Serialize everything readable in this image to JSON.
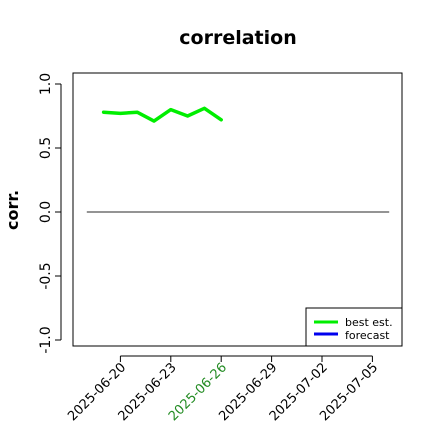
{
  "chart_data": {
    "type": "line",
    "title": "correlation",
    "xlabel": "",
    "ylabel": "corr.",
    "ylim": [
      -1.0,
      1.0
    ],
    "xlim": [
      "2025-06-17",
      "2025-07-07"
    ],
    "y_ticks": [
      "-1.0",
      "-0.5",
      "0.0",
      "0.5",
      "1.0"
    ],
    "x_ticks": [
      {
        "label": "2025-06-20",
        "date": "2025-06-20",
        "color": "#000000"
      },
      {
        "label": "2025-06-23",
        "date": "2025-06-23",
        "color": "#000000"
      },
      {
        "label": "2025-06-26",
        "date": "2025-06-26",
        "color": "#228B22"
      },
      {
        "label": "2025-06-29",
        "date": "2025-06-29",
        "color": "#000000"
      },
      {
        "label": "2025-07-02",
        "date": "2025-07-02",
        "color": "#000000"
      },
      {
        "label": "2025-07-05",
        "date": "2025-07-05",
        "color": "#000000"
      }
    ],
    "reference_line": {
      "y": 0.0,
      "from": "2025-06-18",
      "to": "2025-07-06",
      "color": "#555555"
    },
    "series": [
      {
        "name": "best est.",
        "color": "#00ee00",
        "x": [
          "2025-06-19",
          "2025-06-20",
          "2025-06-21",
          "2025-06-22",
          "2025-06-23",
          "2025-06-24",
          "2025-06-25",
          "2025-06-26"
        ],
        "y": [
          0.78,
          0.77,
          0.78,
          0.71,
          0.8,
          0.75,
          0.81,
          0.72
        ]
      },
      {
        "name": "forecast",
        "color": "#0000ee",
        "x": [],
        "y": []
      }
    ],
    "legend": {
      "position": "bottom-right"
    }
  }
}
